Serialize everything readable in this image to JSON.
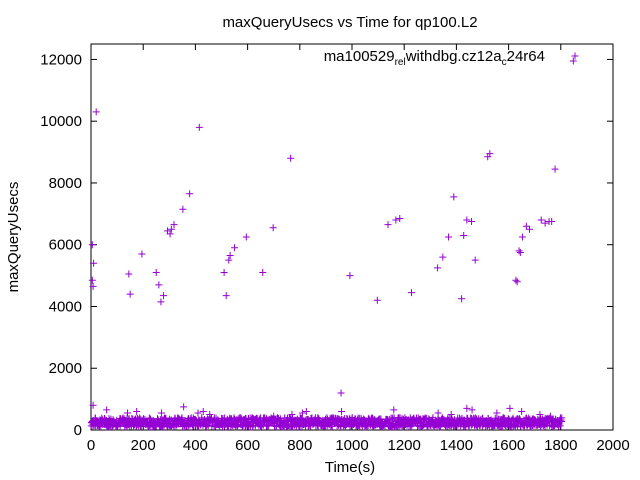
{
  "chart_data": {
    "type": "scatter",
    "title": "maxQueryUsecs vs Time for qp100.L2",
    "xlabel": "Time(s)",
    "ylabel": "maxQueryUsecs",
    "xlim": [
      0,
      2000
    ],
    "ylim": [
      0,
      12500
    ],
    "xticks": [
      "0",
      "200",
      "400",
      "600",
      "800",
      "1000",
      "1200",
      "1400",
      "1600",
      "1800",
      "2000"
    ],
    "yticks": [
      "0",
      "2000",
      "4000",
      "6000",
      "8000",
      "10000",
      "12000"
    ],
    "grid": false,
    "legend_position": "top-right",
    "marker": "+",
    "series": [
      {
        "name_parts": [
          {
            "t": "ma100529",
            "sub": false
          },
          {
            "t": "rel",
            "sub": true
          },
          {
            "t": "withdbg.cz12a",
            "sub": false
          },
          {
            "t": "c",
            "sub": true
          },
          {
            "t": "24r64",
            "sub": false
          }
        ],
        "color": "#9400d3",
        "outliers": [
          [
            5,
            6000
          ],
          [
            5,
            4850
          ],
          [
            8,
            4650
          ],
          [
            10,
            5400
          ],
          [
            20,
            10300
          ],
          [
            145,
            5050
          ],
          [
            150,
            4400
          ],
          [
            195,
            5700
          ],
          [
            250,
            5100
          ],
          [
            260,
            4700
          ],
          [
            268,
            4150
          ],
          [
            278,
            4350
          ],
          [
            293,
            6450
          ],
          [
            303,
            6350
          ],
          [
            308,
            6500
          ],
          [
            318,
            6650
          ],
          [
            352,
            7150
          ],
          [
            378,
            7650
          ],
          [
            415,
            9800
          ],
          [
            510,
            5100
          ],
          [
            518,
            4350
          ],
          [
            528,
            5500
          ],
          [
            533,
            5650
          ],
          [
            550,
            5900
          ],
          [
            595,
            6250
          ],
          [
            658,
            5100
          ],
          [
            698,
            6550
          ],
          [
            765,
            8800
          ],
          [
            958,
            1200
          ],
          [
            992,
            5000
          ],
          [
            1097,
            4200
          ],
          [
            1138,
            6650
          ],
          [
            1168,
            6800
          ],
          [
            1183,
            6850
          ],
          [
            1228,
            4450
          ],
          [
            1328,
            5250
          ],
          [
            1348,
            5600
          ],
          [
            1370,
            6250
          ],
          [
            1390,
            7550
          ],
          [
            1420,
            4250
          ],
          [
            1428,
            6300
          ],
          [
            1440,
            6800
          ],
          [
            1458,
            6750
          ],
          [
            1472,
            5500
          ],
          [
            1520,
            8850
          ],
          [
            1528,
            8950
          ],
          [
            1628,
            4850
          ],
          [
            1633,
            4800
          ],
          [
            1640,
            5800
          ],
          [
            1645,
            5750
          ],
          [
            1653,
            6250
          ],
          [
            1668,
            6600
          ],
          [
            1680,
            6500
          ],
          [
            1725,
            6800
          ],
          [
            1740,
            6700
          ],
          [
            1755,
            6750
          ],
          [
            1765,
            6750
          ],
          [
            1778,
            8450
          ],
          [
            1848,
            11950
          ]
        ],
        "baseline_range": [
          0,
          1800
        ],
        "baseline_level": 250,
        "baseline_spread": 150,
        "low_outliers": [
          [
            8,
            800
          ],
          [
            60,
            650
          ],
          [
            140,
            550
          ],
          [
            175,
            600
          ],
          [
            270,
            550
          ],
          [
            355,
            750
          ],
          [
            410,
            550
          ],
          [
            430,
            600
          ],
          [
            455,
            500
          ],
          [
            700,
            450
          ],
          [
            770,
            500
          ],
          [
            810,
            550
          ],
          [
            825,
            600
          ],
          [
            960,
            600
          ],
          [
            1160,
            650
          ],
          [
            1330,
            550
          ],
          [
            1380,
            500
          ],
          [
            1440,
            700
          ],
          [
            1460,
            650
          ],
          [
            1555,
            550
          ],
          [
            1605,
            700
          ],
          [
            1650,
            600
          ],
          [
            1720,
            500
          ],
          [
            1760,
            450
          ]
        ]
      }
    ]
  }
}
